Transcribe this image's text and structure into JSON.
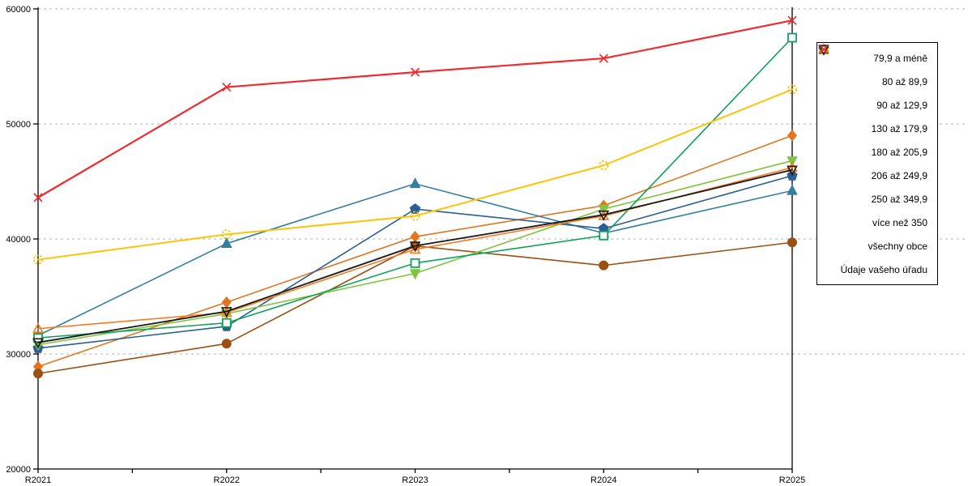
{
  "chart_data": {
    "type": "line",
    "title": "",
    "xlabel": "",
    "ylabel": "",
    "categories": [
      "R2021",
      "R2022",
      "R2023",
      "R2024",
      "R2025"
    ],
    "ylim": [
      20000,
      60000
    ],
    "y_ticks": [
      20000,
      30000,
      40000,
      50000,
      60000
    ],
    "grid": "horizontal-dashed",
    "legend_position": "right",
    "series": [
      {
        "name": "79,9 a méně",
        "color": "#E2751F",
        "marker": "diamond-filled",
        "line_width": 1.6,
        "values": [
          28900,
          34500,
          40200,
          42900,
          49000
        ]
      },
      {
        "name": "80 až 89,9",
        "color": "#9C4F12",
        "marker": "circle-filled",
        "line_width": 1.6,
        "values": [
          28300,
          30900,
          39400,
          37700,
          39700
        ]
      },
      {
        "name": "90 až 129,9",
        "color": "#337F9D",
        "marker": "triangle-up-filled",
        "line_width": 1.6,
        "values": [
          31600,
          39600,
          44800,
          40500,
          44200
        ]
      },
      {
        "name": "130 až 179,9",
        "color": "#2C5F94",
        "marker": "pentagon-filled",
        "line_width": 1.6,
        "values": [
          30500,
          32400,
          42600,
          40900,
          45500
        ]
      },
      {
        "name": "180 až 205,9",
        "color": "#82C341",
        "marker": "triangle-down-filled",
        "line_width": 1.6,
        "values": [
          30800,
          33500,
          37000,
          42600,
          46800
        ]
      },
      {
        "name": "206 až 249,9",
        "color": "#0EA157",
        "marker": "square-open",
        "line_width": 1.6,
        "values": [
          31400,
          32700,
          37900,
          40300,
          57500
        ]
      },
      {
        "name": "250 až 349,9",
        "color": "#FBC40D",
        "marker": "circle-open-dashed",
        "line_width": 2.0,
        "values": [
          38200,
          40400,
          42000,
          46400,
          53000
        ]
      },
      {
        "name": "více než 350",
        "color": "#F47B21",
        "marker": "triangle-up-open",
        "line_width": 1.6,
        "values": [
          32200,
          33600,
          39100,
          42000,
          46200
        ]
      },
      {
        "name": "všechny obce",
        "color": "#1A1A1A",
        "marker": "triangle-down-open",
        "line_width": 1.8,
        "values": [
          31000,
          33700,
          39400,
          42100,
          46000
        ]
      },
      {
        "name": "Údaje vašeho úřadu",
        "color": "#EF2B2F",
        "marker": "x",
        "line_width": 2.2,
        "values": [
          43600,
          53200,
          54500,
          55700,
          59000
        ]
      }
    ],
    "gridline_color": "#b3b3b3",
    "axis_color": "#000000"
  }
}
